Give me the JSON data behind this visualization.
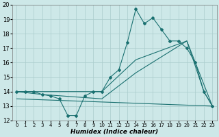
{
  "xlabel": "Humidex (Indice chaleur)",
  "xlim": [
    -0.5,
    23.5
  ],
  "ylim": [
    12,
    20
  ],
  "yticks": [
    12,
    13,
    14,
    15,
    16,
    17,
    18,
    19,
    20
  ],
  "xticks": [
    0,
    1,
    2,
    3,
    4,
    5,
    6,
    7,
    8,
    9,
    10,
    11,
    12,
    13,
    14,
    15,
    16,
    17,
    18,
    19,
    20,
    21,
    22,
    23
  ],
  "bg_color": "#cde8e8",
  "grid_color": "#aacccc",
  "line_color": "#1a7070",
  "line1_x": [
    0,
    1,
    2,
    3,
    4,
    5,
    6,
    7,
    8,
    9,
    10,
    11,
    12,
    13,
    14,
    15,
    16,
    17,
    18,
    19,
    20,
    21,
    22,
    23
  ],
  "line1_y": [
    14.0,
    14.0,
    14.0,
    13.8,
    13.7,
    13.5,
    12.35,
    12.35,
    13.7,
    14.0,
    14.0,
    15.0,
    15.5,
    17.4,
    19.7,
    18.7,
    19.1,
    18.3,
    17.5,
    17.5,
    17.0,
    16.0,
    14.0,
    13.0
  ],
  "line2_x": [
    0,
    3,
    10,
    14,
    20,
    22,
    23
  ],
  "line2_y": [
    14.0,
    14.0,
    14.0,
    16.2,
    17.5,
    14.0,
    13.0
  ],
  "line3_x": [
    0,
    3,
    10,
    14,
    20,
    23
  ],
  "line3_y": [
    14.0,
    13.8,
    13.5,
    15.3,
    17.5,
    13.0
  ],
  "line4_x": [
    0,
    23
  ],
  "line4_y": [
    13.5,
    13.0
  ]
}
